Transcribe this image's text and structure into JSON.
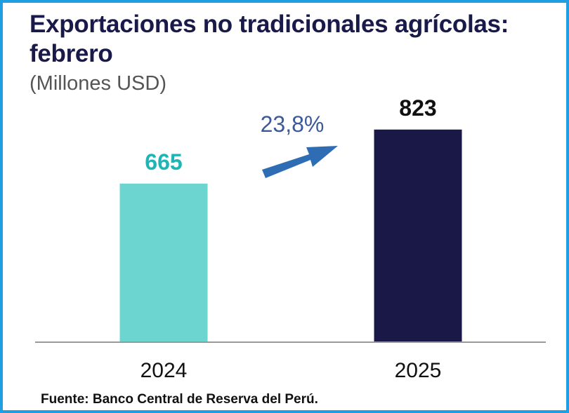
{
  "chart_data": {
    "type": "bar",
    "title": "Exportaciones no tradicionales agrícolas: febrero",
    "subtitle": "(Millones USD)",
    "categories": [
      "2024",
      "2025"
    ],
    "values": [
      665,
      823
    ],
    "data_labels": [
      "665",
      "823"
    ],
    "bar_colors": [
      "#6dd5d0",
      "#191846"
    ],
    "label_colors": [
      "#20b5b5",
      "#111111"
    ],
    "annotation": {
      "text": "23,8%",
      "color": "#3b5a99",
      "arrow_color": "#2e6db4",
      "arrow_direction": "up-right"
    },
    "ylim": [
      200,
      1000
    ],
    "grid": false,
    "legend": "none",
    "source": "Fuente: Banco Central de Reserva del Perú."
  }
}
